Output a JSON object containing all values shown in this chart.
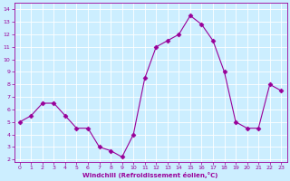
{
  "x": [
    0,
    1,
    2,
    3,
    4,
    5,
    6,
    7,
    8,
    9,
    10,
    11,
    12,
    13,
    14,
    15,
    16,
    17,
    18,
    19,
    20,
    21,
    22,
    23
  ],
  "y": [
    5.0,
    5.5,
    6.5,
    6.5,
    5.5,
    4.5,
    4.5,
    3.0,
    2.7,
    2.2,
    4.0,
    8.5,
    11.0,
    11.5,
    12.0,
    13.5,
    12.8,
    11.5,
    9.0,
    5.0,
    4.5,
    4.5,
    8.0,
    7.5
  ],
  "line_color": "#990099",
  "marker": "D",
  "marker_size": 2.5,
  "bg_color": "#cceeff",
  "grid_color": "#ffffff",
  "xlabel": "Windchill (Refroidissement éolien,°C)",
  "ylim": [
    1.8,
    14.5
  ],
  "xlim": [
    -0.5,
    23.5
  ],
  "yticks": [
    2,
    3,
    4,
    5,
    6,
    7,
    8,
    9,
    10,
    11,
    12,
    13,
    14
  ],
  "xticks": [
    0,
    1,
    2,
    3,
    4,
    5,
    6,
    7,
    8,
    9,
    10,
    11,
    12,
    13,
    14,
    15,
    16,
    17,
    18,
    19,
    20,
    21,
    22,
    23
  ],
  "axis_color": "#990099",
  "label_color": "#990099"
}
